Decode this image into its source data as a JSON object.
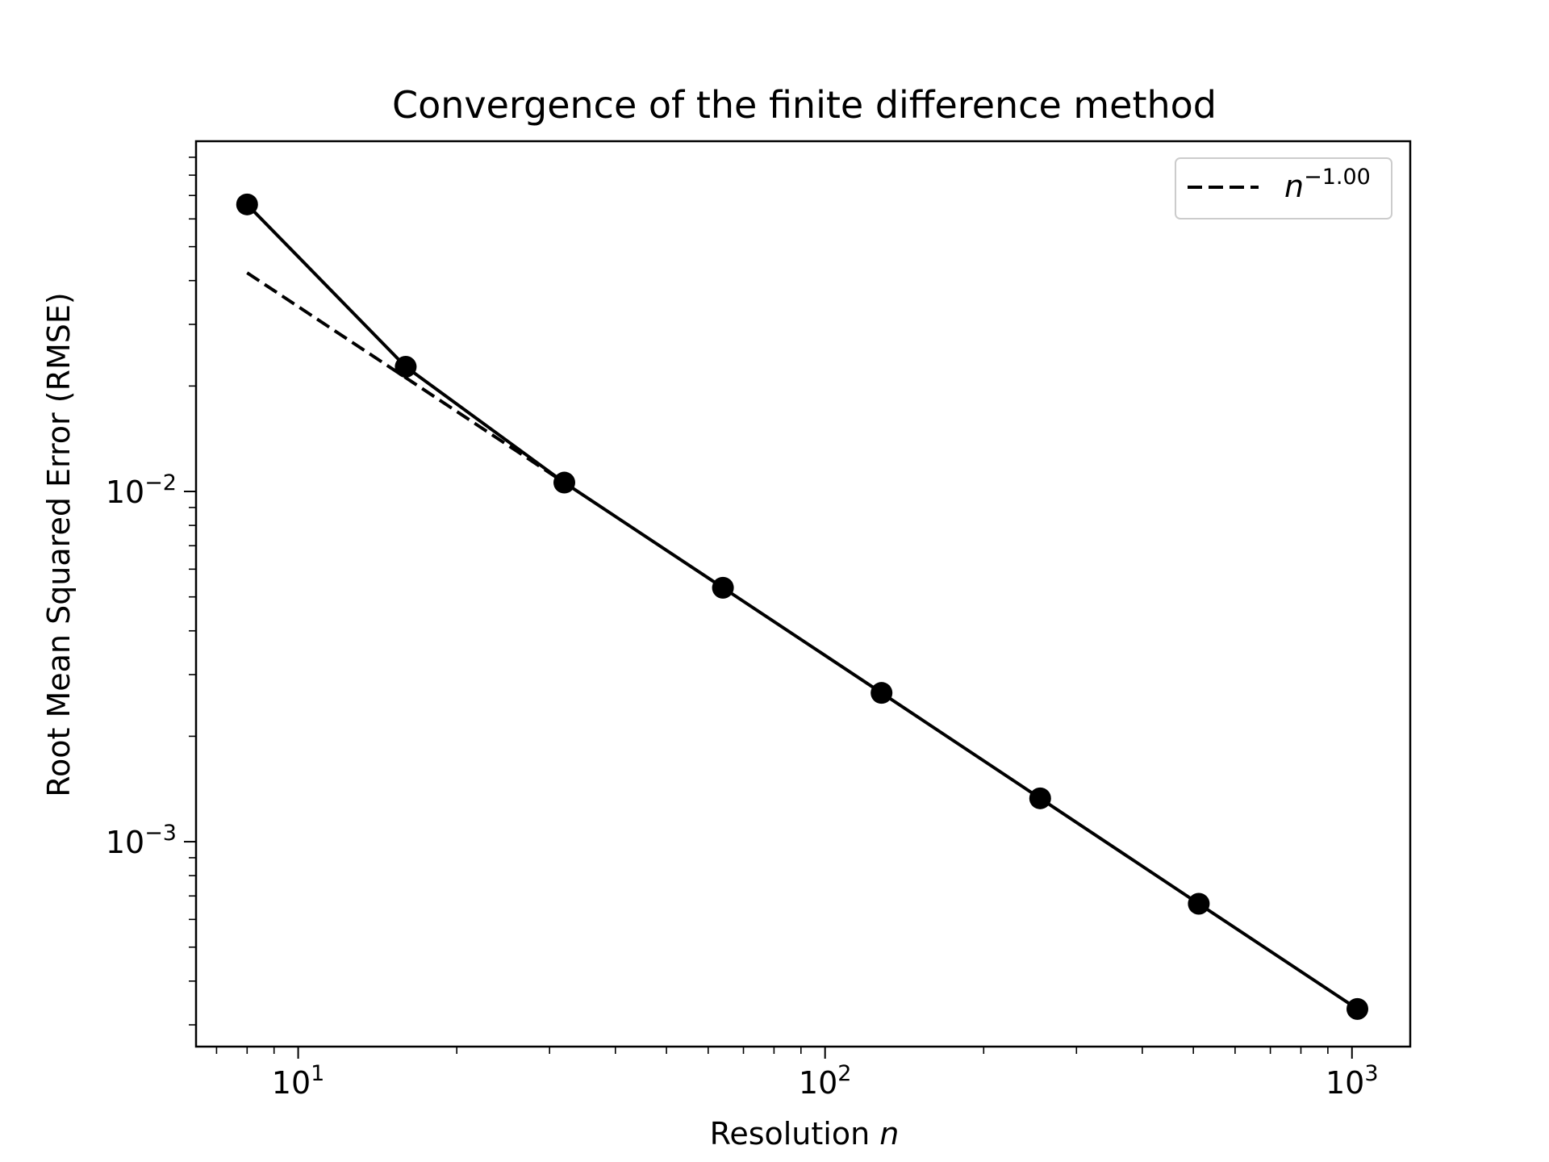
{
  "chart_data": {
    "type": "line",
    "title": "Convergence of the finite difference method",
    "xlabel": "Resolution",
    "xlabel_var": "n",
    "ylabel": "Root Mean Squared Error (RMSE)",
    "xscale": "log",
    "yscale": "log",
    "xlim": [
      6.4,
      1290
    ],
    "ylim": [
      0.00026,
      0.1
    ],
    "x_ticks": [
      {
        "base": "10",
        "exp": "1",
        "value": 10
      },
      {
        "base": "10",
        "exp": "2",
        "value": 100
      },
      {
        "base": "10",
        "exp": "3",
        "value": 1000
      }
    ],
    "y_ticks": [
      {
        "base": "10",
        "exp": "−2",
        "value": 0.01
      },
      {
        "base": "10",
        "exp": "−3",
        "value": 0.001
      }
    ],
    "grid": false,
    "legend_position": "top-right",
    "series": [
      {
        "style": "solid-markers",
        "color": "#000000",
        "x": [
          8,
          16,
          32,
          64,
          128,
          256,
          512,
          1024
        ],
        "y": [
          0.066,
          0.0227,
          0.0106,
          0.00531,
          0.00266,
          0.00133,
          0.000665,
          0.000333
        ]
      },
      {
        "name": "n",
        "name_exp": "−1.00",
        "style": "dashed",
        "color": "#000000",
        "x": [
          8,
          32
        ],
        "y": [
          0.0421,
          0.0106
        ]
      }
    ]
  }
}
